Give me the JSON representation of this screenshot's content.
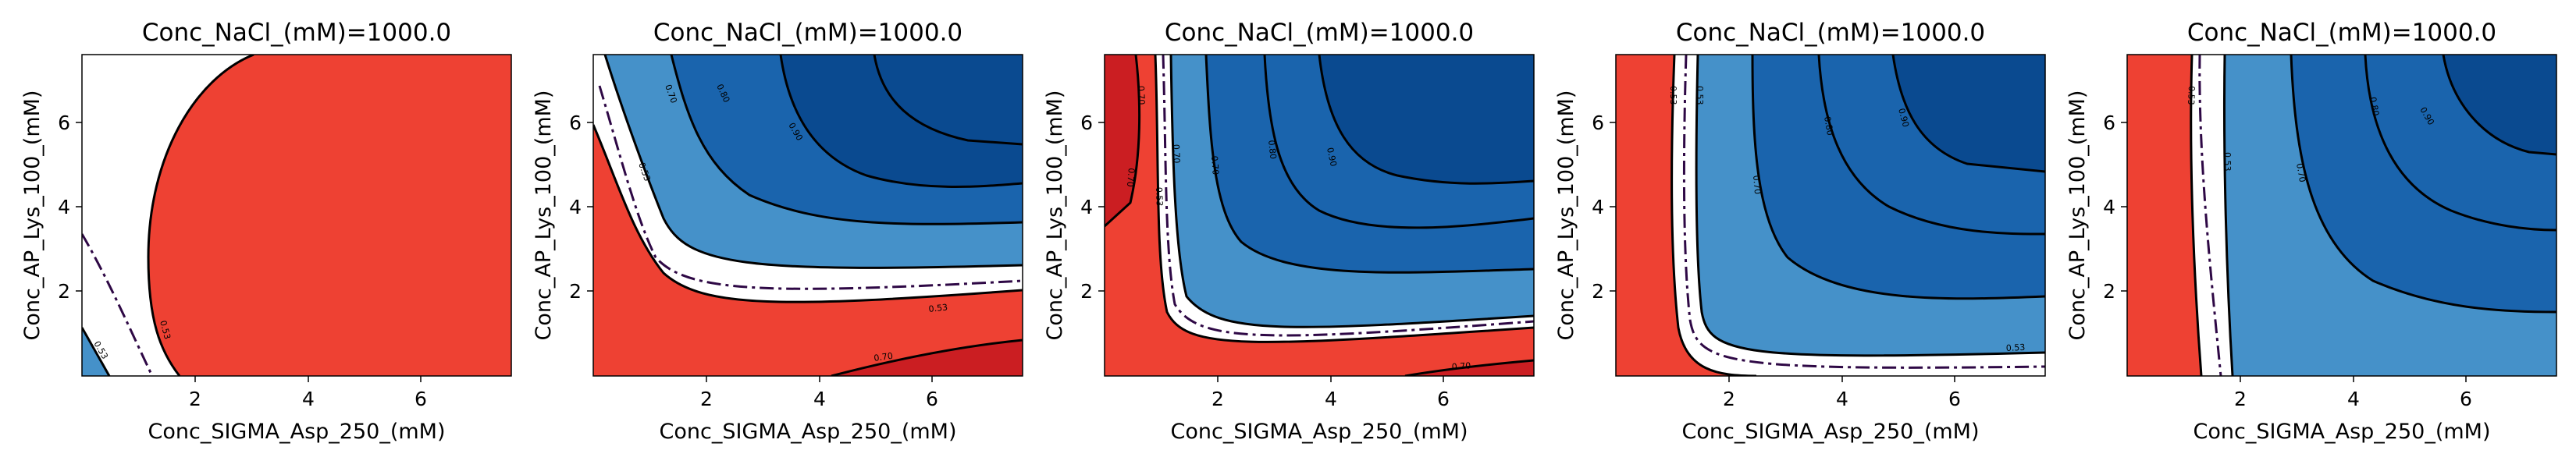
{
  "chart_data": [
    {
      "type": "contour",
      "title": "Conc_NaCl_(mM)=1000.0",
      "xlabel": "Conc_SIGMA_Asp_250_(mM)",
      "ylabel": "Conc_AP_Lys_100_(mM)",
      "xlim": [
        0.0,
        7.6
      ],
      "ylim": [
        0.0,
        7.6
      ],
      "xticks": [
        2,
        4,
        6
      ],
      "yticks": [
        2,
        4,
        6
      ],
      "threshold_level": 0.53,
      "contour_levels": [
        0.53
      ],
      "colors": {
        "red": "#ee4133",
        "white": "#ffffff",
        "blue": "#4591c9"
      }
    },
    {
      "type": "contour",
      "title": "Conc_NaCl_(mM)=1000.0",
      "xlabel": "Conc_SIGMA_Asp_250_(mM)",
      "ylabel": "Conc_AP_Lys_100_(mM)",
      "xlim": [
        0.0,
        7.6
      ],
      "ylim": [
        0.0,
        7.6
      ],
      "xticks": [
        2,
        4,
        6
      ],
      "yticks": [
        2,
        4,
        6
      ],
      "threshold_level": 0.53,
      "contour_levels": [
        0.53,
        0.7,
        0.8,
        0.9
      ],
      "colors": {
        "red": "#ee4133",
        "darkred": "#cb1e22",
        "blue1": "#4591c9",
        "blue2": "#1a64ad",
        "blue3": "#0a4a90"
      }
    },
    {
      "type": "contour",
      "title": "Conc_NaCl_(mM)=1000.0",
      "xlabel": "Conc_SIGMA_Asp_250_(mM)",
      "ylabel": "Conc_AP_Lys_100_(mM)",
      "xlim": [
        0.0,
        7.6
      ],
      "ylim": [
        0.0,
        7.6
      ],
      "xticks": [
        2,
        4,
        6
      ],
      "yticks": [
        2,
        4,
        6
      ],
      "threshold_level": 0.53,
      "contour_levels": [
        0.53,
        0.7,
        0.8,
        0.9
      ],
      "colors": {
        "red": "#ee4133",
        "darkred": "#cb1e22",
        "blue1": "#4591c9",
        "blue2": "#1a64ad",
        "blue3": "#0a4a90"
      }
    },
    {
      "type": "contour",
      "title": "Conc_NaCl_(mM)=1000.0",
      "xlabel": "Conc_SIGMA_Asp_250_(mM)",
      "ylabel": "Conc_AP_Lys_100_(mM)",
      "xlim": [
        0.0,
        7.6
      ],
      "ylim": [
        0.0,
        7.6
      ],
      "xticks": [
        2,
        4,
        6
      ],
      "yticks": [
        2,
        4,
        6
      ],
      "threshold_level": 0.53,
      "contour_levels": [
        0.53,
        0.7,
        0.8,
        0.9
      ],
      "colors": {
        "red": "#ee4133",
        "blue1": "#4591c9",
        "blue2": "#1a64ad",
        "blue3": "#0a4a90"
      }
    },
    {
      "type": "contour",
      "title": "Conc_NaCl_(mM)=1000.0",
      "xlabel": "Conc_SIGMA_Asp_250_(mM)",
      "ylabel": "Conc_AP_Lys_100_(mM)",
      "xlim": [
        0.0,
        7.6
      ],
      "ylim": [
        0.0,
        7.6
      ],
      "xticks": [
        2,
        4,
        6
      ],
      "yticks": [
        2,
        4,
        6
      ],
      "threshold_level": 0.53,
      "contour_levels": [
        0.53,
        0.7,
        0.8,
        0.9
      ],
      "colors": {
        "red": "#ee4133",
        "blue1": "#4591c9",
        "blue2": "#1a64ad",
        "blue3": "#0a4a90"
      }
    }
  ]
}
